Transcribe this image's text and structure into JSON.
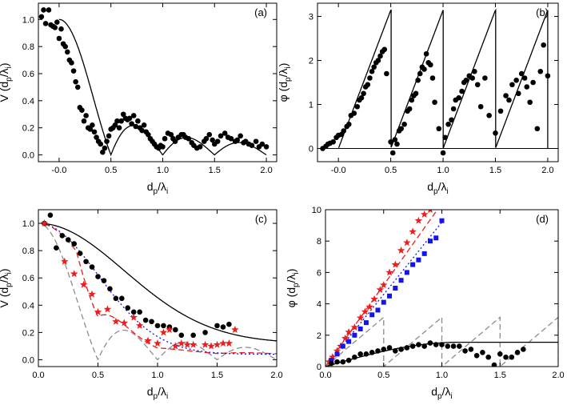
{
  "colors": {
    "axis": "#000000",
    "points": "#000000",
    "theory": "#000000",
    "ideal_gray": "#8c8c8c",
    "red": "#ee1c1c",
    "blue": "#1515e6"
  },
  "chart_data": [
    {
      "id": "a",
      "type": "scatter",
      "panel_label": "(a)",
      "xlabel_main": "d",
      "xlabel_sub": "p",
      "xlabel_mid": "/λ",
      "xlabel_sub2": "i",
      "ylabel_main": "V (d",
      "ylabel_sub": "p",
      "ylabel_mid": "/λ",
      "ylabel_sub2": "i",
      "ylabel_end": ")",
      "xlim": [
        -0.2,
        2.1
      ],
      "ylim": [
        -0.05,
        1.12
      ],
      "xticks": [
        "-0.0",
        "0.5",
        "1.0",
        "1.5",
        "2.0"
      ],
      "xtick_values": [
        0,
        0.5,
        1.0,
        1.5,
        2.0
      ],
      "yticks": [
        "0.0",
        "0.2",
        "0.4",
        "0.6",
        "0.8",
        "1.0"
      ],
      "ytick_values": [
        0,
        0.2,
        0.4,
        0.6,
        0.8,
        1.0
      ],
      "series": [
        {
          "kind": "points",
          "x": [
            -0.17,
            -0.15,
            -0.13,
            -0.1,
            -0.08,
            -0.06,
            -0.04,
            -0.02,
            0.0,
            0.02,
            0.04,
            0.06,
            0.08,
            0.1,
            0.12,
            0.14,
            0.16,
            0.18,
            0.2,
            0.22,
            0.24,
            0.26,
            0.28,
            0.3,
            0.32,
            0.34,
            0.36,
            0.38,
            0.4,
            0.42,
            0.44,
            0.46,
            0.48,
            0.5,
            0.52,
            0.54,
            0.56,
            0.58,
            0.6,
            0.62,
            0.64,
            0.66,
            0.68,
            0.7,
            0.72,
            0.74,
            0.76,
            0.78,
            0.8,
            0.82,
            0.84,
            0.86,
            0.88,
            0.9,
            0.92,
            0.94,
            0.96,
            0.98,
            1.0,
            1.02,
            1.05,
            1.08,
            1.1,
            1.12,
            1.15,
            1.18,
            1.2,
            1.22,
            1.25,
            1.28,
            1.3,
            1.33,
            1.36,
            1.4,
            1.42,
            1.45,
            1.48,
            1.5,
            1.53,
            1.56,
            1.6,
            1.63,
            1.66,
            1.7,
            1.72,
            1.75,
            1.78,
            1.8,
            1.83,
            1.86,
            1.9,
            1.93,
            1.96,
            2.0
          ],
          "y": [
            1.02,
            1.07,
            0.97,
            1.07,
            0.96,
            0.95,
            0.94,
            0.98,
            0.86,
            0.93,
            0.82,
            0.8,
            0.76,
            0.7,
            0.68,
            0.62,
            0.54,
            0.5,
            0.35,
            0.33,
            0.25,
            0.29,
            0.2,
            0.19,
            0.22,
            0.17,
            0.13,
            0.1,
            0.08,
            0.02,
            0.05,
            0.1,
            0.14,
            0.19,
            0.2,
            0.22,
            0.25,
            0.2,
            0.25,
            0.3,
            0.27,
            0.26,
            0.27,
            0.23,
            0.29,
            0.21,
            0.25,
            0.2,
            0.18,
            0.22,
            0.17,
            0.15,
            0.12,
            0.1,
            0.08,
            0.06,
            0.05,
            0.07,
            0.06,
            0.12,
            0.16,
            0.15,
            0.12,
            0.1,
            0.13,
            0.15,
            0.15,
            0.13,
            0.12,
            0.09,
            0.07,
            0.05,
            0.06,
            0.1,
            0.12,
            0.15,
            0.11,
            0.08,
            0.1,
            0.14,
            0.16,
            0.13,
            0.12,
            0.1,
            0.11,
            0.14,
            0.09,
            0.1,
            0.08,
            0.07,
            0.1,
            0.06,
            0.08,
            0.06
          ]
        },
        {
          "kind": "curve",
          "function": "abs_sinc",
          "params": {
            "period": 0.5,
            "amp": 1.0
          },
          "domain": [
            0.0,
            2.0
          ],
          "style": "solid",
          "color_key": "theory"
        }
      ]
    },
    {
      "id": "b",
      "type": "scatter",
      "panel_label": "(b)",
      "xlabel_main": "d",
      "xlabel_sub": "p",
      "xlabel_mid": "/λ",
      "xlabel_sub2": "i",
      "ylabel_main": "φ (d",
      "ylabel_sub": "p",
      "ylabel_mid": "/λ",
      "ylabel_sub2": "i",
      "ylabel_end": ")",
      "xlim": [
        -0.2,
        2.1
      ],
      "ylim": [
        -0.3,
        3.3
      ],
      "xticks": [
        "-0.0",
        "0.5",
        "1.0",
        "1.5",
        "2.0"
      ],
      "xtick_values": [
        0,
        0.5,
        1.0,
        1.5,
        2.0
      ],
      "yticks": [
        "0",
        "1",
        "2",
        "3"
      ],
      "ytick_values": [
        0,
        1,
        2,
        3
      ],
      "series": [
        {
          "kind": "points",
          "x": [
            -0.15,
            -0.12,
            -0.1,
            -0.08,
            -0.05,
            -0.02,
            0.0,
            0.03,
            0.05,
            0.08,
            0.1,
            0.12,
            0.15,
            0.18,
            0.2,
            0.22,
            0.24,
            0.26,
            0.28,
            0.3,
            0.32,
            0.34,
            0.36,
            0.38,
            0.4,
            0.42,
            0.44,
            0.46,
            0.5,
            0.52,
            0.54,
            0.56,
            0.58,
            0.6,
            0.63,
            0.66,
            0.68,
            0.7,
            0.72,
            0.74,
            0.76,
            0.78,
            0.8,
            0.82,
            0.84,
            0.86,
            0.88,
            0.9,
            0.92,
            0.96,
            1.0,
            1.02,
            1.05,
            1.08,
            1.1,
            1.12,
            1.15,
            1.18,
            1.2,
            1.22,
            1.25,
            1.28,
            1.3,
            1.33,
            1.36,
            1.4,
            1.44,
            1.5,
            1.55,
            1.6,
            1.63,
            1.66,
            1.7,
            1.72,
            1.75,
            1.78,
            1.8,
            1.83,
            1.86,
            1.9,
            1.93,
            1.96,
            2.0
          ],
          "y": [
            0.0,
            0.05,
            0.1,
            0.12,
            0.15,
            0.25,
            0.3,
            0.32,
            0.4,
            0.5,
            0.55,
            0.75,
            0.8,
            0.95,
            1.1,
            1.15,
            1.25,
            1.4,
            1.45,
            1.6,
            1.75,
            1.85,
            1.95,
            2.0,
            2.1,
            2.2,
            2.25,
            1.7,
            0.15,
            -0.1,
            0.2,
            0.1,
            0.4,
            0.45,
            0.55,
            0.85,
            0.9,
            1.1,
            1.2,
            1.25,
            1.55,
            1.7,
            1.85,
            1.8,
            2.15,
            1.95,
            1.9,
            1.6,
            1.05,
            0.45,
            -0.1,
            0.25,
            0.55,
            0.65,
            0.9,
            1.1,
            1.15,
            1.3,
            1.5,
            1.55,
            1.65,
            1.6,
            1.75,
            1.45,
            0.95,
            1.6,
            0.75,
            0.35,
            0.85,
            1.2,
            1.1,
            1.45,
            1.55,
            1.25,
            1.7,
            1.6,
            1.4,
            1.05,
            1.5,
            0.45,
            1.75,
            2.35,
            1.65
          ]
        },
        {
          "kind": "curve",
          "function": "sawtooth",
          "params": {
            "period": 0.5,
            "amp": 3.14159
          },
          "domain": [
            -0.2,
            2.0
          ],
          "style": "solid",
          "color_key": "theory"
        }
      ]
    },
    {
      "id": "c",
      "type": "line",
      "panel_label": "(c)",
      "xlabel_main": "d",
      "xlabel_sub": "p",
      "xlabel_mid": "/λ",
      "xlabel_sub2": "i",
      "ylabel_main": "V (d",
      "ylabel_sub": "p",
      "ylabel_mid": "/λ",
      "ylabel_sub2": "i",
      "ylabel_end": ")",
      "xlim": [
        0.0,
        2.0
      ],
      "ylim": [
        -0.05,
        1.1
      ],
      "xticks": [
        "0.0",
        "0.5",
        "1.0",
        "1.5",
        "2.0"
      ],
      "xtick_values": [
        0,
        0.5,
        1.0,
        1.5,
        2.0
      ],
      "yticks": [
        "0.0",
        "0.2",
        "0.4",
        "0.6",
        "0.8",
        "1.0"
      ],
      "ytick_values": [
        0,
        0.2,
        0.4,
        0.6,
        0.8,
        1.0
      ],
      "series": [
        {
          "kind": "points",
          "marker": "circle",
          "x": [
            0.05,
            0.1,
            0.15,
            0.2,
            0.25,
            0.3,
            0.35,
            0.4,
            0.45,
            0.5,
            0.55,
            0.6,
            0.65,
            0.7,
            0.75,
            0.8,
            0.85,
            0.9,
            0.95,
            1.0,
            1.05,
            1.1,
            1.15,
            1.2,
            1.3,
            1.4,
            1.5,
            1.55,
            1.6
          ],
          "y": [
            1.0,
            1.06,
            0.82,
            0.91,
            0.88,
            0.85,
            0.78,
            0.72,
            0.68,
            0.61,
            0.58,
            0.52,
            0.45,
            0.45,
            0.38,
            0.35,
            0.35,
            0.29,
            0.28,
            0.25,
            0.25,
            0.24,
            0.22,
            0.18,
            0.18,
            0.2,
            0.25,
            0.24,
            0.26
          ]
        },
        {
          "kind": "points",
          "marker": "star",
          "color_key": "red",
          "x": [
            0.05,
            0.22,
            0.3,
            0.38,
            0.45,
            0.5,
            0.58,
            0.65,
            0.72,
            0.8,
            0.85,
            0.92,
            1.0,
            1.05,
            1.1,
            1.15,
            1.2,
            1.25,
            1.3,
            1.4,
            1.45,
            1.5,
            1.55,
            1.6,
            1.65
          ],
          "y": [
            1.0,
            0.72,
            0.63,
            0.55,
            0.48,
            0.35,
            0.37,
            0.28,
            0.27,
            0.31,
            0.25,
            0.14,
            0.12,
            0.2,
            0.22,
            0.1,
            0.12,
            0.11,
            0.11,
            0.11,
            0.1,
            0.11,
            0.12,
            0.12,
            0.22
          ]
        },
        {
          "kind": "curve",
          "function": "gaussian",
          "params": {
            "sigma": 0.72,
            "floor": 0.12
          },
          "domain": [
            0.05,
            2.0
          ],
          "style": "solid",
          "color_key": "theory"
        },
        {
          "kind": "curve",
          "function": "abs_sinc",
          "params": {
            "period": 0.5,
            "amp": 1.0
          },
          "domain": [
            0.05,
            2.0
          ],
          "style": "dashed",
          "color_key": "ideal_gray"
        },
        {
          "kind": "curve",
          "function": "damped_sinc",
          "params": {
            "sigma": 0.45,
            "floor": 0.08,
            "mix": 0.45
          },
          "domain": [
            0.05,
            2.0
          ],
          "style": "dashed",
          "color_key": "red"
        },
        {
          "kind": "curve",
          "function": "gaussian",
          "params": {
            "sigma": 0.5,
            "floor": 0.04
          },
          "domain": [
            0.05,
            2.0
          ],
          "style": "dotted",
          "color_key": "blue"
        }
      ]
    },
    {
      "id": "d",
      "type": "line",
      "panel_label": "(d)",
      "xlabel_main": "d",
      "xlabel_sub": "p",
      "xlabel_mid": "/λ",
      "xlabel_sub2": "i",
      "ylabel_main": "φ (d",
      "ylabel_sub": "p",
      "ylabel_mid": "/λ",
      "ylabel_sub2": "i",
      "ylabel_end": ")",
      "xlim": [
        0.0,
        2.0
      ],
      "ylim": [
        0.0,
        10.0
      ],
      "xticks": [
        "0.0",
        "0.5",
        "1.0",
        "1.5",
        "2.0"
      ],
      "xtick_values": [
        0,
        0.5,
        1.0,
        1.5,
        2.0
      ],
      "yticks": [
        "0",
        "2",
        "4",
        "6",
        "8",
        "10"
      ],
      "ytick_values": [
        0,
        2,
        4,
        6,
        8,
        10
      ],
      "series": [
        {
          "kind": "points",
          "marker": "star",
          "color_key": "red",
          "x": [
            0.03,
            0.06,
            0.1,
            0.13,
            0.17,
            0.2,
            0.25,
            0.3,
            0.34,
            0.38,
            0.42,
            0.47,
            0.5,
            0.55,
            0.6,
            0.65,
            0.7,
            0.75,
            0.8,
            0.85,
            0.9
          ],
          "y": [
            0.3,
            0.6,
            1.0,
            1.3,
            1.8,
            2.2,
            2.5,
            3.1,
            3.5,
            3.8,
            4.3,
            4.9,
            5.2,
            6.0,
            6.5,
            7.4,
            7.9,
            8.6,
            9.3,
            9.7,
            10.0
          ]
        },
        {
          "kind": "points",
          "marker": "square",
          "color_key": "blue",
          "x": [
            0.05,
            0.1,
            0.15,
            0.2,
            0.25,
            0.3,
            0.35,
            0.4,
            0.45,
            0.5,
            0.55,
            0.6,
            0.65,
            0.7,
            0.75,
            0.8,
            0.85,
            0.9,
            0.95,
            1.0
          ],
          "y": [
            0.4,
            0.8,
            1.3,
            1.6,
            2.0,
            2.4,
            2.8,
            3.3,
            3.6,
            4.1,
            4.5,
            5.0,
            5.5,
            6.0,
            6.5,
            6.8,
            7.2,
            8.0,
            8.2,
            9.3
          ]
        },
        {
          "kind": "points",
          "marker": "circle",
          "x": [
            0.05,
            0.1,
            0.15,
            0.2,
            0.25,
            0.3,
            0.35,
            0.4,
            0.45,
            0.5,
            0.55,
            0.6,
            0.65,
            0.7,
            0.75,
            0.8,
            0.85,
            0.9,
            0.95,
            1.0,
            1.05,
            1.1,
            1.15,
            1.2,
            1.25,
            1.3,
            1.35,
            1.4,
            1.45,
            1.5,
            1.55,
            1.6,
            1.65,
            1.7
          ],
          "y": [
            0.2,
            0.3,
            0.3,
            0.4,
            0.6,
            0.8,
            0.8,
            0.9,
            1.0,
            1.1,
            1.2,
            1.0,
            1.1,
            1.2,
            1.3,
            1.4,
            1.3,
            1.5,
            1.4,
            1.4,
            1.3,
            1.3,
            1.3,
            1.0,
            1.1,
            0.7,
            0.9,
            0.6,
            0.1,
            0.8,
            0.6,
            0.6,
            0.9,
            1.1
          ]
        },
        {
          "kind": "curve",
          "function": "linear",
          "params": {
            "slope": 10.4,
            "intercept": 0.0
          },
          "domain": [
            0.0,
            0.96
          ],
          "style": "dashed",
          "color_key": "red"
        },
        {
          "kind": "curve",
          "function": "linear",
          "params": {
            "slope": 9.2,
            "intercept": 0.0
          },
          "domain": [
            0.0,
            1.0
          ],
          "style": "dotted",
          "color_key": "blue"
        },
        {
          "kind": "curve",
          "function": "sawtooth",
          "params": {
            "period": 0.5,
            "amp": 3.14159
          },
          "domain": [
            0.0,
            2.0
          ],
          "style": "dashed",
          "color_key": "ideal_gray"
        },
        {
          "kind": "curve",
          "function": "rise_plateau",
          "params": {
            "peak_x": 1.15,
            "peak_y": 1.55
          },
          "domain": [
            0.0,
            2.0
          ],
          "style": "solid",
          "color_key": "theory"
        }
      ]
    }
  ]
}
